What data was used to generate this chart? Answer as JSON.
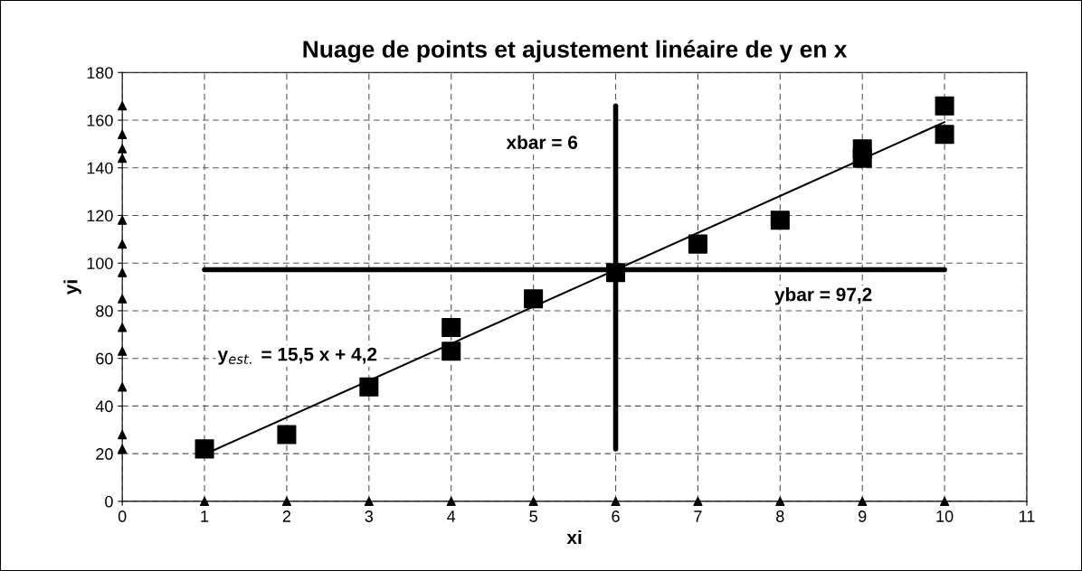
{
  "chart_data": {
    "type": "scatter",
    "title": "Nuage de points et ajustement linéaire de y en x",
    "xlabel": "xi",
    "ylabel": "yi",
    "xlim": [
      0,
      11
    ],
    "xticks": [
      0,
      1,
      2,
      3,
      4,
      5,
      6,
      7,
      8,
      9,
      10,
      11
    ],
    "ylim": [
      0,
      180
    ],
    "yticks": [
      0,
      20,
      40,
      60,
      80,
      100,
      120,
      140,
      160,
      180
    ],
    "grid": true,
    "legend": false,
    "series": [
      {
        "type": "line",
        "color": "#000000",
        "x": [
          1,
          10
        ],
        "values": [
          19.7,
          159.2
        ]
      },
      {
        "type": "line",
        "color": "#000000",
        "x": [
          1,
          10
        ],
        "values": [
          97.2,
          97.2
        ]
      },
      {
        "type": "line",
        "color": "#000000",
        "x": [
          6,
          6
        ],
        "values": [
          22,
          166
        ]
      },
      {
        "type": "scatter",
        "marker": "square",
        "color": "#000000",
        "x": [
          1,
          2,
          3,
          4,
          4,
          5,
          6,
          7,
          8,
          9,
          9,
          10,
          10
        ],
        "values": [
          22,
          28,
          48,
          63,
          73,
          85,
          96,
          108,
          118,
          144,
          148,
          154,
          166
        ]
      },
      {
        "type": "scatter",
        "marker": "triangle",
        "color": "#000000",
        "x": [
          1,
          2,
          3,
          4,
          5,
          6,
          7,
          8,
          9,
          10
        ],
        "values": [
          0,
          0,
          0,
          0,
          0,
          0,
          0,
          0,
          0,
          0
        ]
      },
      {
        "type": "scatter",
        "marker": "triangle",
        "color": "#000000",
        "x": [
          0,
          0,
          0,
          0,
          0,
          0,
          0,
          0,
          0,
          0,
          0,
          0,
          0
        ],
        "values": [
          22,
          28,
          48,
          63,
          73,
          85,
          96,
          108,
          118,
          144,
          148,
          154,
          166
        ]
      }
    ],
    "annotations": [
      {
        "text": "y$_{est.}$ = 15,5 x + 4,2",
        "x": 2,
        "y": 35.2
      },
      {
        "text": "xbar = 6",
        "x": 6,
        "y": 150
      },
      {
        "text": "ybar = 97,2",
        "x": 9,
        "y": 97.2
      }
    ]
  }
}
